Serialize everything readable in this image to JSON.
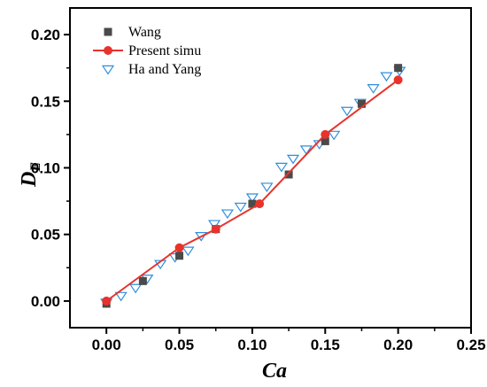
{
  "chart_data": {
    "type": "scatter",
    "xlabel": "Ca",
    "ylabel_main": "D",
    "ylabel_sub": "E",
    "xlim": [
      -0.025,
      0.25
    ],
    "ylim": [
      -0.02,
      0.22
    ],
    "xticks": [
      0.0,
      0.05,
      0.1,
      0.15,
      0.2,
      0.25
    ],
    "xtick_labels": [
      "0.00",
      "0.05",
      "0.10",
      "0.15",
      "0.20",
      "0.25"
    ],
    "yticks": [
      0.0,
      0.05,
      0.1,
      0.15,
      0.2
    ],
    "ytick_labels": [
      "0.00",
      "0.05",
      "0.10",
      "0.15",
      "0.20"
    ],
    "legend_position": "top-left",
    "series": [
      {
        "name": "Wang",
        "kind": "marker-square",
        "color": "#4a4a4a",
        "x": [
          0.0,
          0.025,
          0.05,
          0.075,
          0.1,
          0.125,
          0.15,
          0.175,
          0.2
        ],
        "y": [
          -0.002,
          0.015,
          0.034,
          0.054,
          0.073,
          0.095,
          0.12,
          0.148,
          0.175
        ]
      },
      {
        "name": "Present simu",
        "kind": "line-circle",
        "color": "#e8332c",
        "x": [
          0.0,
          0.05,
          0.075,
          0.105,
          0.15,
          0.2
        ],
        "y": [
          0.0,
          0.04,
          0.054,
          0.073,
          0.125,
          0.166
        ]
      },
      {
        "name": "Ha and Yang",
        "kind": "marker-triangle-down",
        "color": "#2f8fdb",
        "x": [
          0.0,
          0.01,
          0.02,
          0.028,
          0.037,
          0.047,
          0.056,
          0.065,
          0.074,
          0.083,
          0.092,
          0.1,
          0.11,
          0.12,
          0.128,
          0.137,
          0.146,
          0.156,
          0.165,
          0.174,
          0.183,
          0.192,
          0.201
        ],
        "y": [
          -0.001,
          0.004,
          0.01,
          0.017,
          0.028,
          0.033,
          0.038,
          0.049,
          0.058,
          0.066,
          0.071,
          0.078,
          0.086,
          0.101,
          0.107,
          0.114,
          0.118,
          0.125,
          0.143,
          0.149,
          0.16,
          0.169,
          0.173
        ]
      }
    ]
  }
}
